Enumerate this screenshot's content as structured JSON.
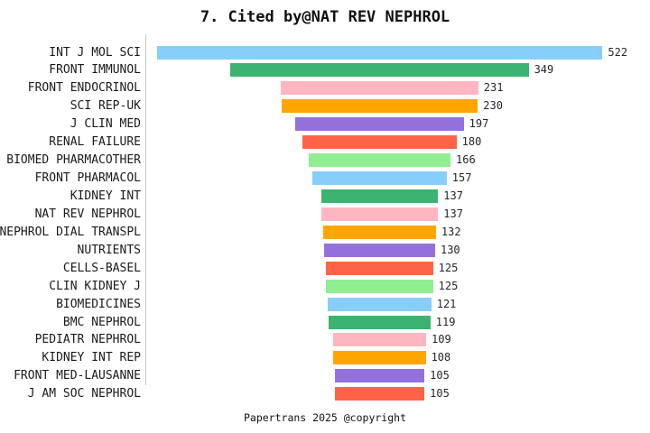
{
  "title": "7. Cited by@NAT REV NEPHROL",
  "footer": "Papertrans 2025 @copyright",
  "chart_data": {
    "type": "bar",
    "orientation": "horizontal",
    "style": "centered-funnel",
    "title": "7. Cited by@NAT REV NEPHROL",
    "categories": [
      "INT J MOL SCI",
      "FRONT IMMUNOL",
      "FRONT ENDOCRINOL",
      "SCI REP-UK",
      "J CLIN MED",
      "RENAL FAILURE",
      "BIOMED PHARMACOTHER",
      "FRONT PHARMACOL",
      "KIDNEY INT",
      "NAT REV NEPHROL",
      "NEPHROL DIAL TRANSPL",
      "NUTRIENTS",
      "CELLS-BASEL",
      "CLIN KIDNEY J",
      "BIOMEDICINES",
      "BMC NEPHROL",
      "PEDIATR NEPHROL",
      "KIDNEY INT REP",
      "FRONT MED-LAUSANNE",
      "J AM SOC NEPHROL"
    ],
    "values": [
      522,
      349,
      231,
      230,
      197,
      180,
      166,
      157,
      137,
      137,
      132,
      130,
      125,
      125,
      121,
      119,
      109,
      108,
      105,
      105
    ],
    "palette": [
      "#87CEFA",
      "#3CB371",
      "#FFB6C1",
      "#FFA500",
      "#9370DB",
      "#FF6347",
      "#90EE90"
    ],
    "value_labels_shown": true,
    "xmax": 522,
    "grid": false,
    "legend": false,
    "axis_line_color": "#c9c9c9",
    "label_color": "#1a1a1a"
  }
}
